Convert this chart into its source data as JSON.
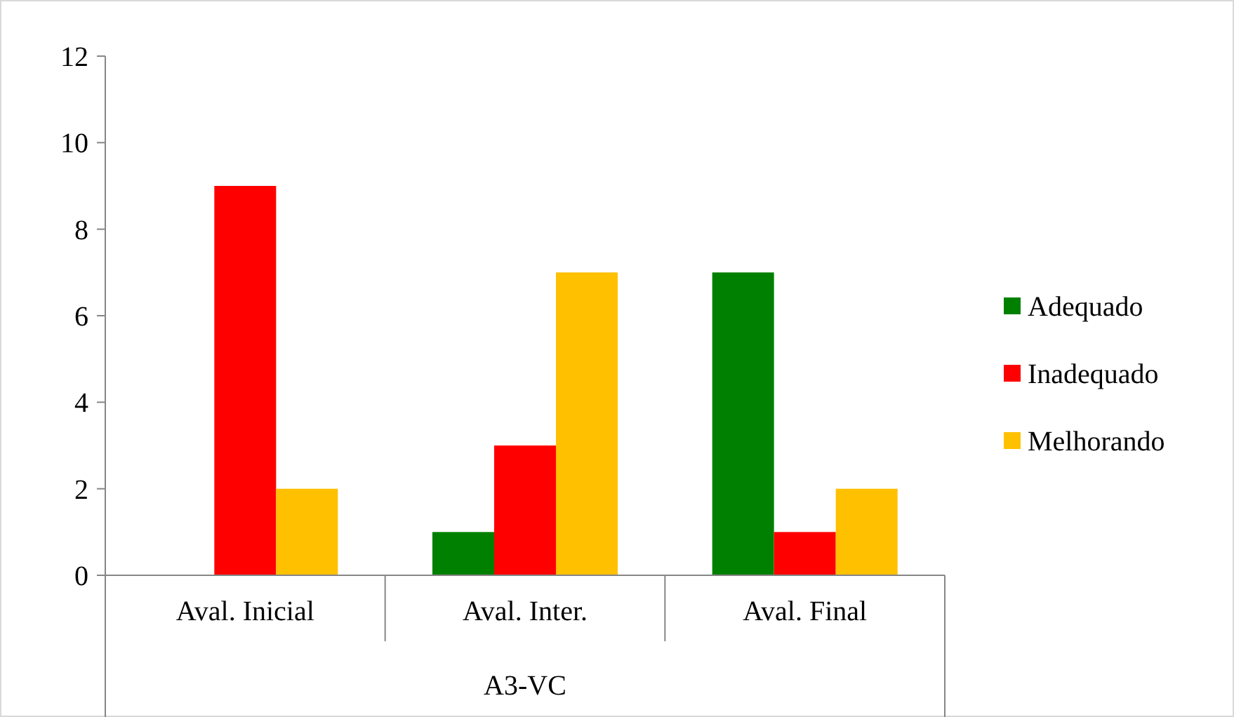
{
  "chart_data": {
    "type": "bar",
    "categories": [
      "Aval. Inicial",
      "Aval. Inter.",
      "Aval. Final"
    ],
    "xlabel": "A3-VC",
    "series": [
      {
        "name": "Adequado",
        "color": "#008000",
        "values": [
          0,
          1,
          7
        ]
      },
      {
        "name": "Inadequado",
        "color": "#ff0000",
        "values": [
          9,
          3,
          1
        ]
      },
      {
        "name": "Melhorando",
        "color": "#ffc000",
        "values": [
          2,
          7,
          2
        ]
      }
    ],
    "ylim": [
      0,
      12
    ],
    "yticks": [
      0,
      2,
      4,
      6,
      8,
      10,
      12
    ],
    "grid": false,
    "legend": "right"
  }
}
